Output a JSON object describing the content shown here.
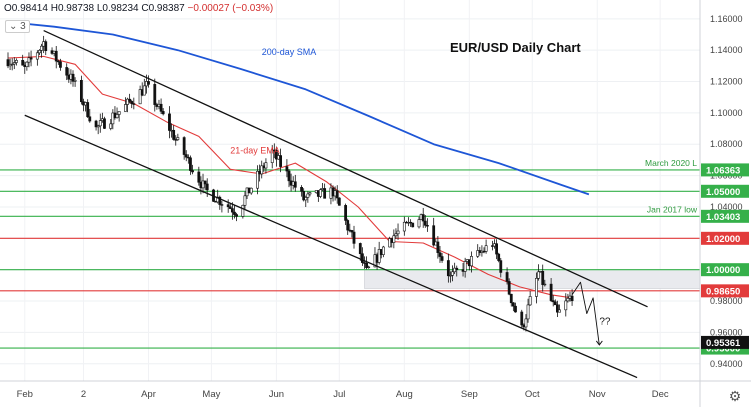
{
  "legend_bar": {
    "open": "O0.98414",
    "high": "H0.98738",
    "low": "L0.98234",
    "close": "C0.98387",
    "change": "−0.00027 (−0.03%)"
  },
  "visibility_toggle": "3",
  "colors": {
    "sma": "#1e56d6",
    "ema": "#e23b3b",
    "green_level": "#35b04a",
    "red_level": "#e23b3b",
    "channel": "#111111",
    "last_price_bg": "#111111"
  },
  "chart_data": {
    "type": "candlestick",
    "title": "EUR/USD Daily Chart",
    "x_ticks": [
      "Feb",
      "2",
      "Apr",
      "May",
      "Jun",
      "Jul",
      "Aug",
      "Sep",
      "Oct",
      "Nov",
      "Dec"
    ],
    "y_ticks": [
      1.16,
      1.14,
      1.12,
      1.1,
      1.08,
      1.06,
      1.04,
      1.02,
      1.0,
      0.98,
      0.96,
      0.94
    ],
    "y_tick_labels": [
      "1.16000",
      "1.14000",
      "1.12000",
      "1.10000",
      "1.08000",
      "1.06000",
      "1.04000",
      "1.02000",
      "1.00000",
      "0.98000",
      "0.96000",
      "0.94000"
    ],
    "ylim": [
      0.929,
      1.172
    ],
    "date_range": [
      "2022-01-24",
      "2022-12-20"
    ],
    "levels": [
      {
        "value": 1.06363,
        "label": "1.06363",
        "note": "March 2020 L",
        "color": "green"
      },
      {
        "value": 1.05,
        "label": "1.05000",
        "note": "",
        "color": "green"
      },
      {
        "value": 1.03403,
        "label": "1.03403",
        "note": "Jan 2017 low",
        "color": "green"
      },
      {
        "value": 1.02,
        "label": "1.02000",
        "note": "",
        "color": "red"
      },
      {
        "value": 1.0,
        "label": "1.00000",
        "note": "",
        "color": "green"
      },
      {
        "value": 0.9865,
        "label": "0.98650",
        "note": "",
        "color": "red"
      },
      {
        "value": 0.95,
        "label": "0.95000",
        "note": "",
        "color": "green"
      }
    ],
    "last_price": {
      "value": 0.95361,
      "label": "0.95361"
    },
    "support_zone": {
      "x": [
        "2022-07-13",
        "2022-12-20"
      ],
      "y": [
        0.988,
        1.0
      ]
    },
    "channel_upper": {
      "x": [
        "2022-02-10",
        "2022-11-25"
      ],
      "y": [
        1.1525,
        0.9763
      ]
    },
    "channel_lower": {
      "x": [
        "2022-02-01",
        "2022-11-20"
      ],
      "y": [
        1.0985,
        0.9312
      ]
    },
    "sma_200": {
      "label": "200-day SMA",
      "x": [
        "2022-01-24",
        "2022-02-15",
        "2022-03-15",
        "2022-04-15",
        "2022-05-15",
        "2022-06-15",
        "2022-07-15",
        "2022-08-15",
        "2022-09-15",
        "2022-10-15",
        "2022-10-28"
      ],
      "y": [
        1.158,
        1.155,
        1.15,
        1.14,
        1.128,
        1.115,
        1.098,
        1.08,
        1.068,
        1.054,
        1.048
      ]
    },
    "ema_21": {
      "label": "21-day EMA",
      "x": [
        "2022-01-24",
        "2022-02-10",
        "2022-02-25",
        "2022-03-10",
        "2022-03-25",
        "2022-04-10",
        "2022-04-25",
        "2022-05-10",
        "2022-05-25",
        "2022-06-10",
        "2022-06-25",
        "2022-07-10",
        "2022-07-25",
        "2022-08-10",
        "2022-08-25",
        "2022-09-10",
        "2022-09-25",
        "2022-10-10",
        "2022-10-20"
      ],
      "y": [
        1.135,
        1.136,
        1.131,
        1.112,
        1.106,
        1.094,
        1.085,
        1.064,
        1.061,
        1.068,
        1.056,
        1.04,
        1.018,
        1.017,
        1.008,
        0.997,
        0.989,
        0.984,
        0.982
      ]
    },
    "price_path": {
      "x": [
        "2022-01-24",
        "2022-02-01",
        "2022-02-10",
        "2022-02-24",
        "2022-03-07",
        "2022-03-20",
        "2022-03-31",
        "2022-04-14",
        "2022-04-28",
        "2022-05-13",
        "2022-05-30",
        "2022-06-14",
        "2022-06-28",
        "2022-07-14",
        "2022-07-25",
        "2022-08-10",
        "2022-08-23",
        "2022-09-12",
        "2022-09-26",
        "2022-10-04",
        "2022-10-13",
        "2022-10-20"
      ],
      "y": [
        1.134,
        1.128,
        1.145,
        1.12,
        1.09,
        1.103,
        1.117,
        1.083,
        1.051,
        1.037,
        1.075,
        1.045,
        1.05,
        0.998,
        1.02,
        1.035,
        0.995,
        1.017,
        0.962,
        0.998,
        0.971,
        0.984
      ]
    },
    "projection": {
      "x": [
        "2022-10-20",
        "2022-10-24",
        "2022-10-27",
        "2022-10-30",
        "2022-11-02"
      ],
      "y": [
        0.984,
        0.992,
        0.972,
        0.982,
        0.952
      ]
    },
    "annotations": [
      {
        "text": "200-day SMA",
        "x": "2022-05-25",
        "y": 1.137,
        "color": "sma"
      },
      {
        "text": "21-day EMA",
        "x": "2022-05-10",
        "y": 1.074,
        "color": "ema"
      },
      {
        "text": "??",
        "x": "2022-11-02",
        "y": 0.965,
        "color": "channel"
      }
    ]
  }
}
